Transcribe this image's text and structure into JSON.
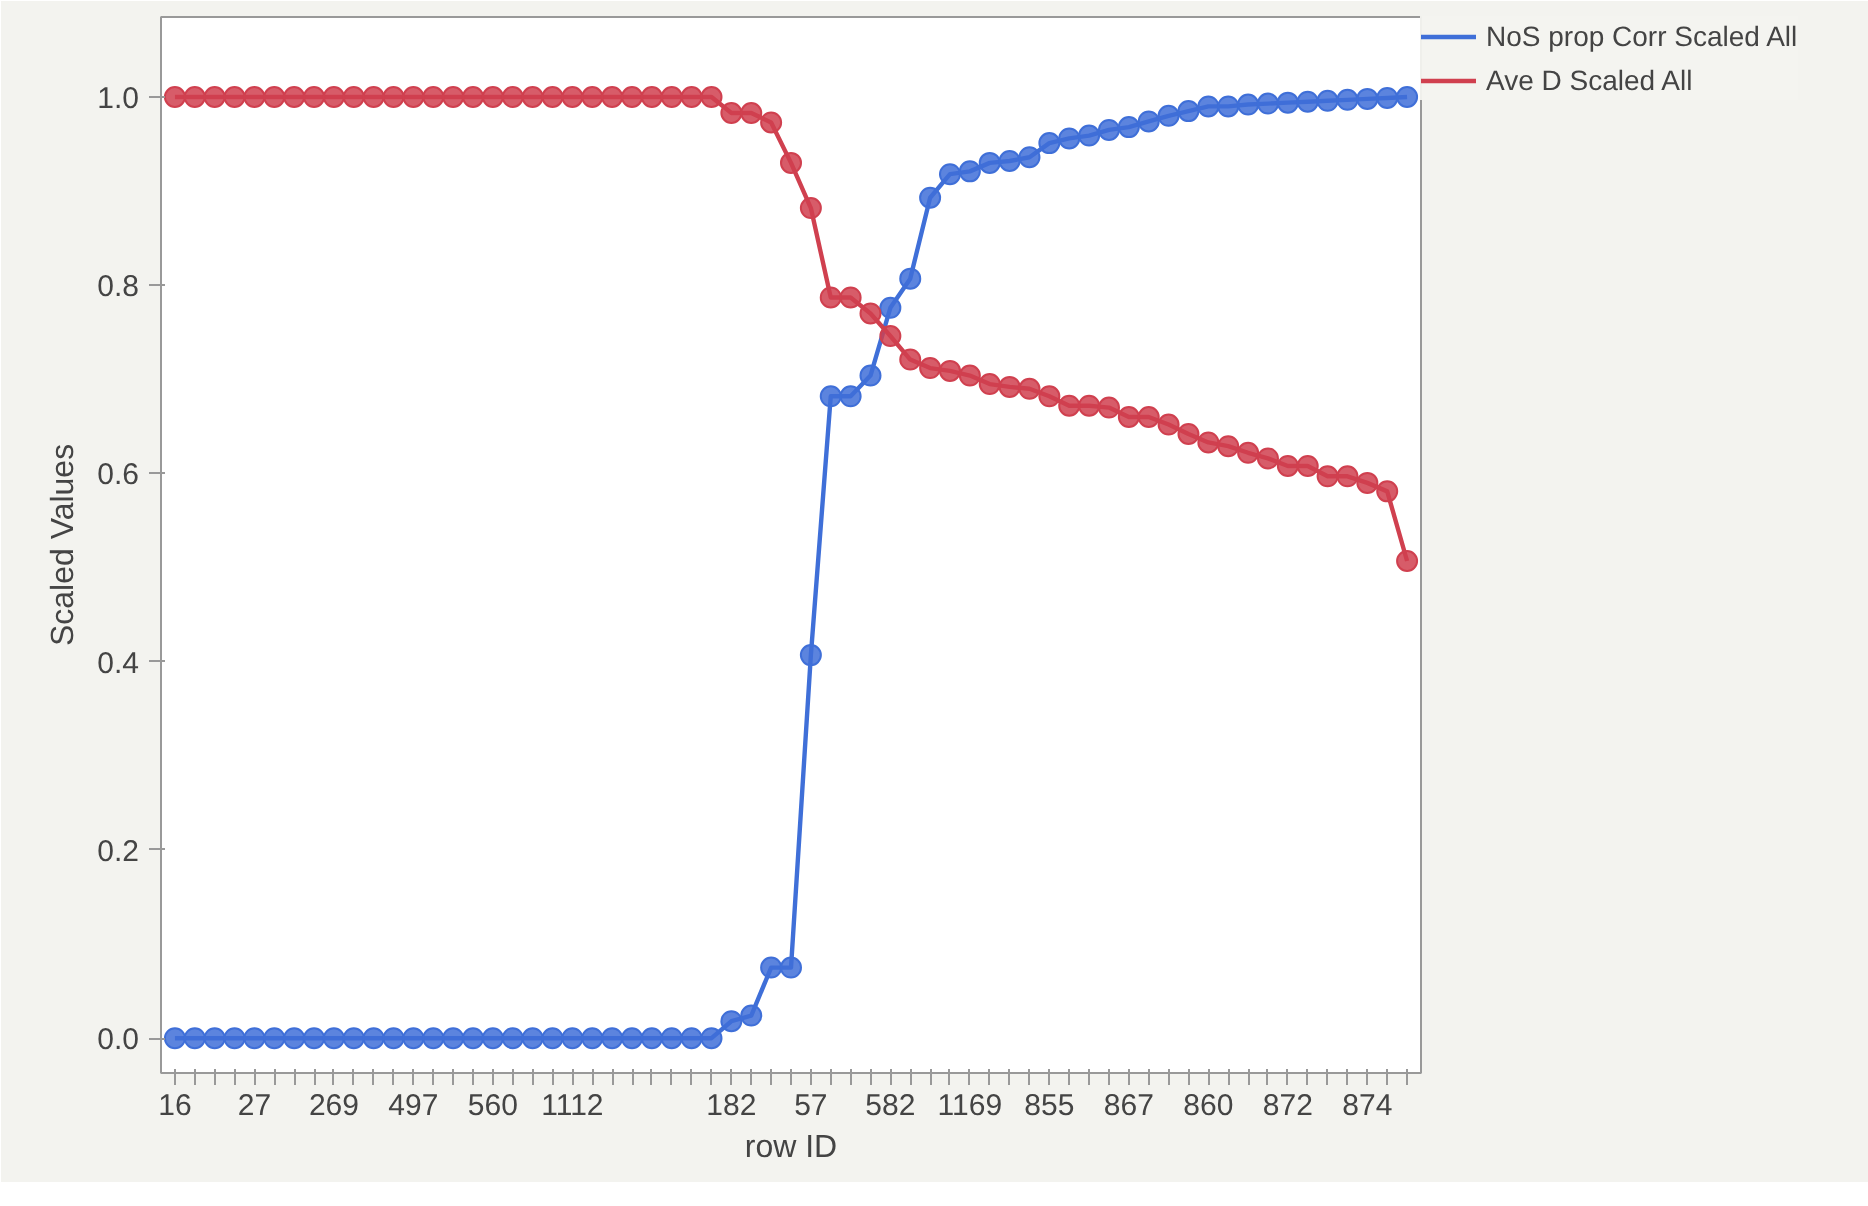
{
  "chart_data": {
    "type": "line",
    "xlabel": "row ID",
    "ylabel": "Scaled Values",
    "categories": [
      "16",
      null,
      null,
      null,
      "27",
      null,
      null,
      null,
      "269",
      null,
      null,
      null,
      "497",
      null,
      null,
      null,
      "560",
      null,
      null,
      null,
      "1112",
      null,
      null,
      null,
      null,
      null,
      null,
      null,
      "182",
      null,
      null,
      null,
      "57",
      null,
      null,
      null,
      "582",
      null,
      null,
      null,
      "1169",
      null,
      null,
      null,
      "855",
      null,
      null,
      null,
      "867",
      null,
      null,
      null,
      "860",
      null,
      null,
      null,
      "872",
      null,
      null,
      null,
      "874",
      null,
      null
    ],
    "series": [
      {
        "name": "NoS prop Corr Scaled All",
        "color": "#3f6fd8",
        "values": [
          0,
          0,
          0,
          0,
          0,
          0,
          0,
          0,
          0,
          0,
          0,
          0,
          0,
          0,
          0,
          0,
          0,
          0,
          0,
          0,
          0,
          0,
          0,
          0,
          0,
          0,
          0,
          0,
          0.018,
          0.024,
          0.075,
          0.075,
          0.407,
          0.682,
          0.682,
          0.704,
          0.776,
          0.807,
          0.893,
          0.918,
          0.921,
          0.93,
          0.932,
          0.936,
          0.951,
          0.956,
          0.959,
          0.965,
          0.968,
          0.974,
          0.98,
          0.985,
          0.99,
          0.99,
          0.992,
          0.993,
          0.994,
          0.995,
          0.996,
          0.997,
          0.998,
          0.999,
          1.0
        ]
      },
      {
        "name": "Ave D Scaled All",
        "color": "#d0404f",
        "values": [
          1,
          1,
          1,
          1,
          1,
          1,
          1,
          1,
          1,
          1,
          1,
          1,
          1,
          1,
          1,
          1,
          1,
          1,
          1,
          1,
          1,
          1,
          1,
          1,
          1,
          1,
          1,
          1,
          0.983,
          0.983,
          0.973,
          0.93,
          0.882,
          0.787,
          0.787,
          0.77,
          0.746,
          0.721,
          0.712,
          0.709,
          0.704,
          0.695,
          0.692,
          0.69,
          0.682,
          0.672,
          0.672,
          0.67,
          0.66,
          0.66,
          0.652,
          0.642,
          0.633,
          0.629,
          0.622,
          0.616,
          0.608,
          0.608,
          0.597,
          0.597,
          0.59,
          0.581,
          0.507
        ]
      }
    ],
    "ylim": [
      -0.037,
      1.085
    ],
    "yticks": [
      {
        "value": 0,
        "label": "0.0"
      },
      {
        "value": 0.2,
        "label": "0.2"
      },
      {
        "value": 0.4,
        "label": "0.4"
      },
      {
        "value": 0.6,
        "label": "0.6"
      },
      {
        "value": 0.8,
        "label": "0.8"
      },
      {
        "value": 1.0,
        "label": "1.0"
      }
    ],
    "marker": "circle",
    "line_style": "solid",
    "legend": "top right",
    "grid": false
  }
}
